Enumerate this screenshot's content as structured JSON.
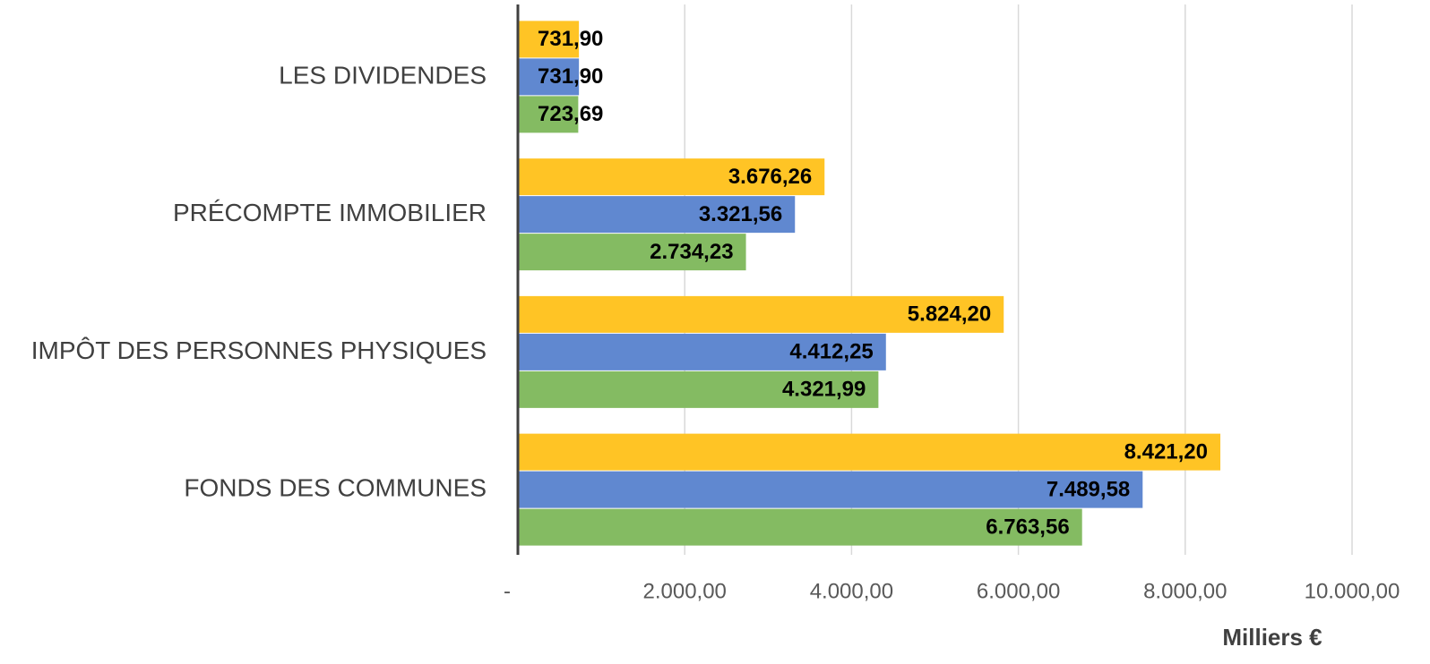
{
  "chart_data": {
    "type": "hbar",
    "categories": [
      "LES DIVIDENDES",
      "PRÉCOMPTE IMMOBILIER",
      "IMPÔT DES PERSONNES PHYSIQUES",
      "FONDS DES COMMUNES"
    ],
    "series": [
      {
        "color": "#ffc425",
        "values": [
          731.9,
          3676.26,
          5824.2,
          8421.2
        ],
        "value_labels": [
          "731,90",
          "3.676,26",
          "5.824,20",
          "8.421,20"
        ]
      },
      {
        "color": "#6088d0",
        "values": [
          731.9,
          3321.56,
          4412.25,
          7489.58
        ],
        "value_labels": [
          "731,90",
          "3.321,56",
          "4.412,25",
          "7.489,58"
        ]
      },
      {
        "color": "#84bb62",
        "values": [
          723.69,
          2734.23,
          4321.99,
          6763.56
        ],
        "value_labels": [
          "723,69",
          "2.734,23",
          "4.321,99",
          "6.763,56"
        ]
      }
    ],
    "xlim": [
      0,
      10000
    ],
    "xticks": [
      {
        "value": 0,
        "label": "-"
      },
      {
        "value": 2000,
        "label": "2.000,00"
      },
      {
        "value": 4000,
        "label": "4.000,00"
      },
      {
        "value": 6000,
        "label": "6.000,00"
      },
      {
        "value": 8000,
        "label": "8.000,00"
      },
      {
        "value": 10000,
        "label": "10.000,00"
      }
    ],
    "x_label": "Milliers €",
    "grid": true
  }
}
